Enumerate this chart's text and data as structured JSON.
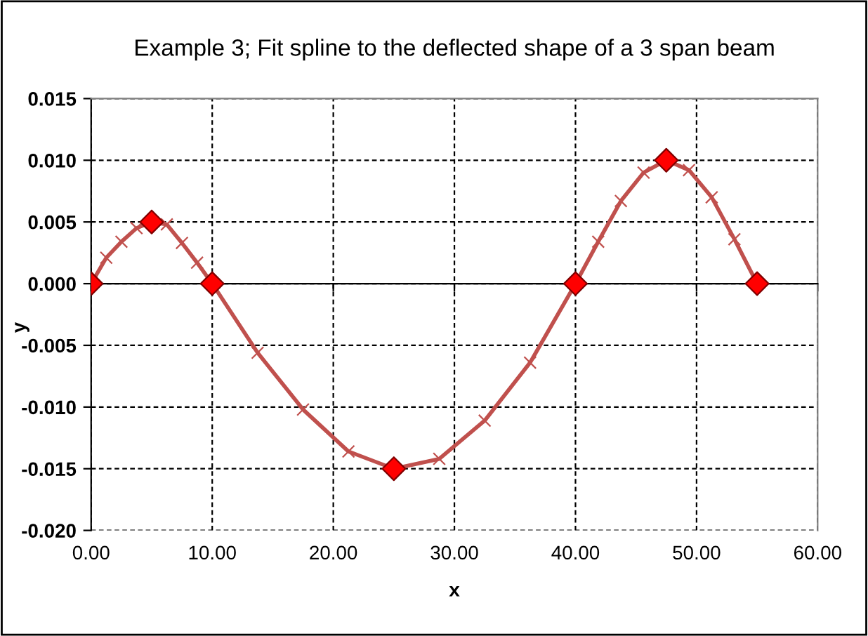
{
  "chart_data": {
    "type": "line",
    "title": "Example 3; Fit spline to the deflected shape of a 3 span beam",
    "xlabel": "x",
    "ylabel": "y",
    "series": [
      {
        "color": "#c0504d",
        "marker": "cross",
        "x": [
          0,
          1.25,
          2.5,
          3.75,
          5,
          6.25,
          7.5,
          8.75,
          10,
          13.75,
          17.5,
          21.25,
          25,
          28.75,
          32.5,
          36.25,
          40,
          41.875,
          43.75,
          45.625,
          47.5,
          49.375,
          51.25,
          53.125,
          55
        ],
        "values": [
          0,
          0.0021,
          0.0034,
          0.0045,
          0.005,
          0.0048,
          0.0033,
          0.0017,
          0,
          -0.0056,
          -0.0102,
          -0.0136,
          -0.015,
          -0.0142,
          -0.0111,
          -0.0064,
          0,
          0.0034,
          0.0067,
          0.009,
          0.01,
          0.0092,
          0.007,
          0.0036,
          0
        ]
      },
      {
        "type": "scatter",
        "color": "#ff0000",
        "marker": "diamond",
        "x": [
          0,
          5,
          10,
          25,
          40,
          47.5,
          55
        ],
        "values": [
          0,
          0.005,
          0,
          -0.015,
          0,
          0.01,
          0
        ]
      }
    ],
    "xlim": [
      0,
      60
    ],
    "ylim": [
      -0.02,
      0.015
    ],
    "xticks": [
      {
        "value": 0,
        "label": "0.00"
      },
      {
        "value": 10,
        "label": "10.00"
      },
      {
        "value": 20,
        "label": "20.00"
      },
      {
        "value": 30,
        "label": "30.00"
      },
      {
        "value": 40,
        "label": "40.00"
      },
      {
        "value": 50,
        "label": "50.00"
      },
      {
        "value": 60,
        "label": "60.00"
      }
    ],
    "yticks": [
      {
        "value": -0.02,
        "label": "-0.020"
      },
      {
        "value": -0.015,
        "label": "-0.015"
      },
      {
        "value": -0.01,
        "label": "-0.010"
      },
      {
        "value": -0.005,
        "label": "-0.005"
      },
      {
        "value": 0,
        "label": "0.000"
      },
      {
        "value": 0.005,
        "label": "0.005"
      },
      {
        "value": 0.01,
        "label": "0.010"
      },
      {
        "value": 0.015,
        "label": "0.015"
      }
    ],
    "grid": true,
    "legend": false
  }
}
